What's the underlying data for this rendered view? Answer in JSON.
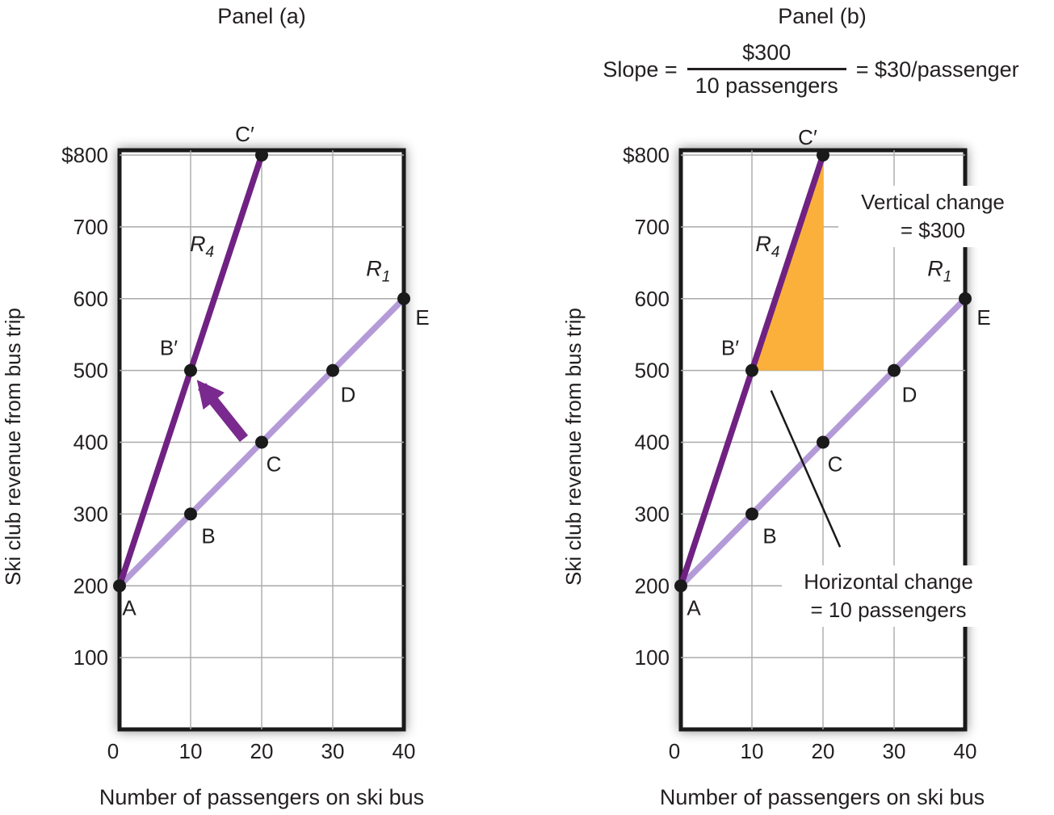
{
  "colors": {
    "r1": "#b49bd8",
    "r4": "#702283",
    "arrow": "#7a2a8e",
    "triangle": "#fbb03b",
    "point": "#1a1a1a",
    "grid": "#aaaaaa",
    "frame": "#1a1a1a",
    "text": "#231f20",
    "pointer": "#1a1a1a"
  },
  "panels": [
    {
      "id": "a",
      "title": "Panel (a)",
      "xlabel": "Number of passengers on ski bus",
      "ylabel": "Ski club revenue from bus trip"
    },
    {
      "id": "b",
      "title": "Panel (b)",
      "xlabel": "Number of passengers on ski bus",
      "ylabel": "Ski club revenue from bus trip",
      "slope_formula": {
        "prefix": "Slope =",
        "numerator": "$300",
        "denominator": "10 passengers",
        "result": "= $30/passenger"
      },
      "callouts": {
        "vertical": [
          "Vertical change",
          "= $300"
        ],
        "horizontal": [
          "Horizontal change",
          "= 10 passengers"
        ]
      }
    }
  ],
  "chart_data": [
    {
      "type": "line",
      "panel": "a",
      "title": "Panel (a)",
      "xlabel": "Number of passengers on ski bus",
      "ylabel": "Ski club revenue from bus trip",
      "xlim": [
        0,
        40
      ],
      "ylim": [
        0,
        800
      ],
      "xticks": [
        0,
        10,
        20,
        30,
        40
      ],
      "xtick_labels": [
        "0",
        "10",
        "20",
        "30",
        "40"
      ],
      "yticks": [
        100,
        200,
        300,
        400,
        500,
        600,
        700,
        800
      ],
      "ytick_labels": [
        "100",
        "200",
        "300",
        "400",
        "500",
        "600",
        "700",
        "$800"
      ],
      "grid": true,
      "legend": "none",
      "series": [
        {
          "name": "R1",
          "label_main": "R",
          "label_sub": "1",
          "color": "r1",
          "x": [
            0,
            10,
            20,
            30,
            40
          ],
          "y": [
            200,
            300,
            400,
            500,
            600
          ],
          "label_pos": {
            "x": 36.4,
            "y": 642
          },
          "points": [
            {
              "x": 0,
              "y": 200,
              "label": "A",
              "dx": 12,
              "dy": 36
            },
            {
              "x": 10,
              "y": 300,
              "label": "B",
              "dx": 22,
              "dy": 36
            },
            {
              "x": 20,
              "y": 400,
              "label": "C",
              "dx": 15,
              "dy": 36
            },
            {
              "x": 30,
              "y": 500,
              "label": "D",
              "dx": 19,
              "dy": 39
            },
            {
              "x": 40,
              "y": 600,
              "label": "E",
              "dx": 23,
              "dy": 32
            }
          ]
        },
        {
          "name": "R4",
          "label_main": "R",
          "label_sub": "4",
          "color": "r4",
          "x": [
            0,
            10,
            20
          ],
          "y": [
            200,
            500,
            800
          ],
          "label_pos": {
            "x": 11.6,
            "y": 676
          },
          "points": [
            {
              "x": 10,
              "y": 500,
              "label": "B′",
              "dx": -27,
              "dy": -19
            },
            {
              "x": 20,
              "y": 800,
              "label": "C′",
              "dx": -21,
              "dy": -17
            }
          ]
        }
      ],
      "shift_arrow": {
        "from": {
          "x": 17.5,
          "y": 405
        },
        "to": {
          "x": 11.6,
          "y": 478
        }
      }
    },
    {
      "type": "line",
      "panel": "b",
      "title": "Panel (b)",
      "xlabel": "Number of passengers on ski bus",
      "ylabel": "Ski club revenue from bus trip",
      "xlim": [
        0,
        40
      ],
      "ylim": [
        0,
        800
      ],
      "xticks": [
        0,
        10,
        20,
        30,
        40
      ],
      "xtick_labels": [
        "0",
        "10",
        "20",
        "30",
        "40"
      ],
      "yticks": [
        100,
        200,
        300,
        400,
        500,
        600,
        700,
        800
      ],
      "ytick_labels": [
        "100",
        "200",
        "300",
        "400",
        "500",
        "600",
        "700",
        "$800"
      ],
      "grid": true,
      "legend": "none",
      "slope_annotation": "Slope = $300 / 10 passengers = $30/passenger",
      "slope_triangle": {
        "vertices": [
          {
            "x": 10,
            "y": 500
          },
          {
            "x": 20,
            "y": 800
          },
          {
            "x": 20,
            "y": 500
          }
        ],
        "vertical_change": 300,
        "horizontal_change": 10
      },
      "pointer_line": {
        "from": {
          "x": 12.7,
          "y": 472
        },
        "to": {
          "x": 22.4,
          "y": 254
        }
      },
      "series": [
        {
          "name": "R1",
          "label_main": "R",
          "label_sub": "1",
          "color": "r1",
          "x": [
            0,
            10,
            20,
            30,
            40
          ],
          "y": [
            200,
            300,
            400,
            500,
            600
          ],
          "label_pos": {
            "x": 36.4,
            "y": 642
          },
          "points": [
            {
              "x": 0,
              "y": 200,
              "label": "A",
              "dx": 16,
              "dy": 36
            },
            {
              "x": 10,
              "y": 300,
              "label": "B",
              "dx": 22,
              "dy": 36
            },
            {
              "x": 20,
              "y": 400,
              "label": "C",
              "dx": 15,
              "dy": 36
            },
            {
              "x": 30,
              "y": 500,
              "label": "D",
              "dx": 19,
              "dy": 39
            },
            {
              "x": 40,
              "y": 600,
              "label": "E",
              "dx": 23,
              "dy": 32
            }
          ]
        },
        {
          "name": "R4",
          "label_main": "R",
          "label_sub": "4",
          "color": "r4",
          "x": [
            0,
            10,
            20
          ],
          "y": [
            200,
            500,
            800
          ],
          "label_pos": {
            "x": 12.2,
            "y": 676
          },
          "points": [
            {
              "x": 10,
              "y": 500,
              "label": "B′",
              "dx": -27,
              "dy": -19
            },
            {
              "x": 20,
              "y": 800,
              "label": "C′",
              "dx": -19,
              "dy": -13
            }
          ]
        }
      ]
    }
  ]
}
